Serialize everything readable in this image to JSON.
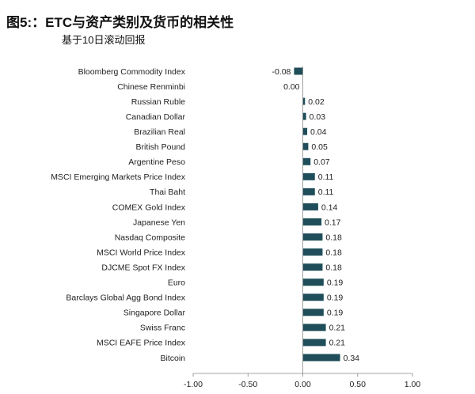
{
  "header": {
    "title": "图5:：ETC与资产类别及货币的相关性",
    "subtitle": "基于10日滚动回报"
  },
  "colors": {
    "bar": "#1f4e5a",
    "axis": "#888888",
    "text": "#222222"
  },
  "chart_data": {
    "type": "bar",
    "orientation": "horizontal",
    "title": "图5:：ETC与资产类别及货币的相关性",
    "subtitle": "基于10日滚动回报",
    "xlim": [
      -1.0,
      1.0
    ],
    "xticks": [
      "-1.00",
      "-0.50",
      "0.00",
      "0.50",
      "1.00"
    ],
    "xtick_values": [
      -1.0,
      -0.5,
      0.0,
      0.5,
      1.0
    ],
    "grid": false,
    "categories": [
      "Bloomberg Commodity Index",
      "Chinese Renminbi",
      "Russian Ruble",
      "Canadian Dollar",
      "Brazilian Real",
      "British Pound",
      "Argentine Peso",
      "MSCI Emerging Markets Price Index",
      "Thai Baht",
      "COMEX Gold Index",
      "Japanese Yen",
      "Nasdaq Composite",
      "MSCI World Price Index",
      "DJCME Spot FX Index",
      "Euro",
      "Barclays Global Agg Bond Index",
      "Singapore Dollar",
      "Swiss Franc",
      "MSCI EAFE Price Index",
      "Bitcoin"
    ],
    "values": [
      -0.08,
      0.0,
      0.02,
      0.03,
      0.04,
      0.05,
      0.07,
      0.11,
      0.11,
      0.14,
      0.17,
      0.18,
      0.18,
      0.18,
      0.19,
      0.19,
      0.19,
      0.21,
      0.21,
      0.34
    ],
    "data_labels": [
      "-0.08",
      "0.00",
      "0.02",
      "0.03",
      "0.04",
      "0.05",
      "0.07",
      "0.11",
      "0.11",
      "0.14",
      "0.17",
      "0.18",
      "0.18",
      "0.18",
      "0.19",
      "0.19",
      "0.19",
      "0.21",
      "0.21",
      "0.34"
    ]
  }
}
